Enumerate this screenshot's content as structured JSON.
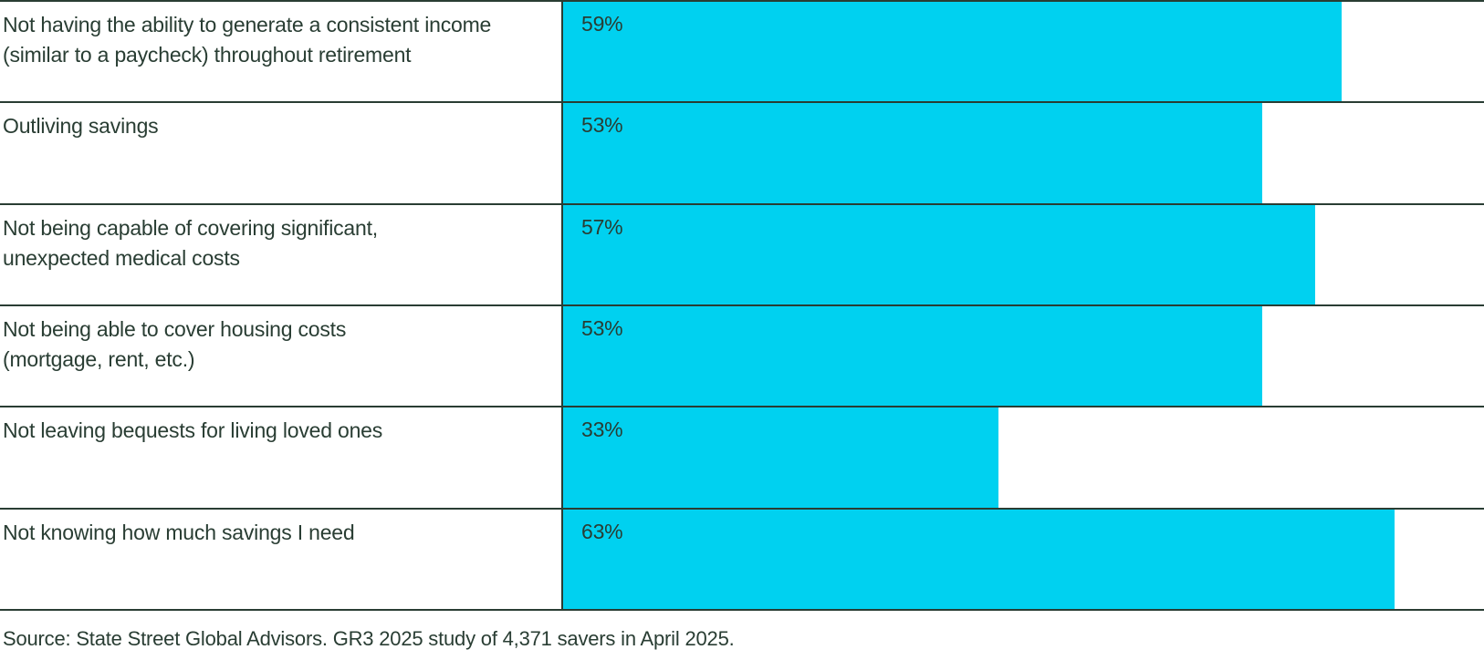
{
  "chart_data": {
    "type": "bar",
    "orientation": "horizontal",
    "title": "",
    "xlabel": "",
    "ylabel": "",
    "xlim": [
      0,
      69.8
    ],
    "grid": "row-separator-lines",
    "legend": "none",
    "bar_color": "#00D1F0",
    "text_color": "#293D33",
    "categories": [
      "Not having the ability to generate a consistent income\n(similar to a paycheck) throughout retirement",
      "Outliving savings",
      "Not being capable of covering significant,\nunexpected medical costs",
      "Not being able to cover housing costs\n(mortgage, rent, etc.)",
      "Not leaving bequests for living loved ones",
      "Not knowing how much savings I need"
    ],
    "values": [
      59,
      53,
      57,
      53,
      33,
      63
    ],
    "value_labels": [
      "59%",
      "53%",
      "57%",
      "53%",
      "33%",
      "63%"
    ],
    "source": "Source: State Street Global Advisors. GR3 2025 study of 4,371 savers in April 2025."
  }
}
